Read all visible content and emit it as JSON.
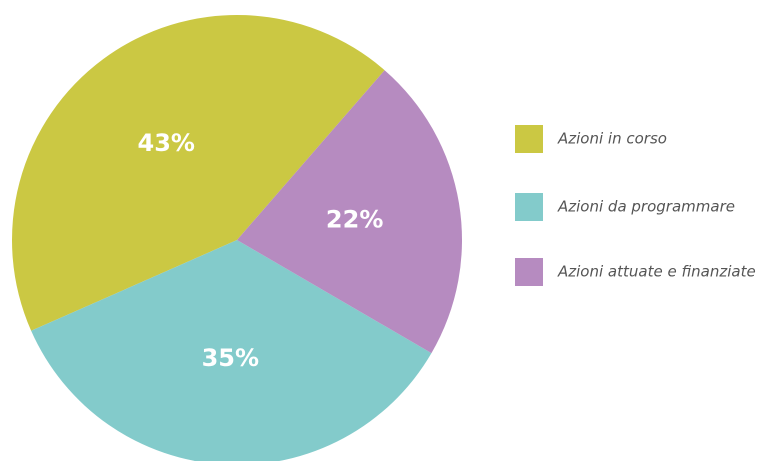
{
  "chart_data": {
    "type": "pie",
    "categories": [
      "Azioni in corso",
      "Azioni da programmare",
      "Azioni attuate e finanziate"
    ],
    "values": [
      43,
      35,
      22
    ],
    "value_labels": [
      "43%",
      "35%",
      "22%"
    ],
    "colors": [
      "#cbc843",
      "#83cbcb",
      "#b68bc0"
    ]
  }
}
